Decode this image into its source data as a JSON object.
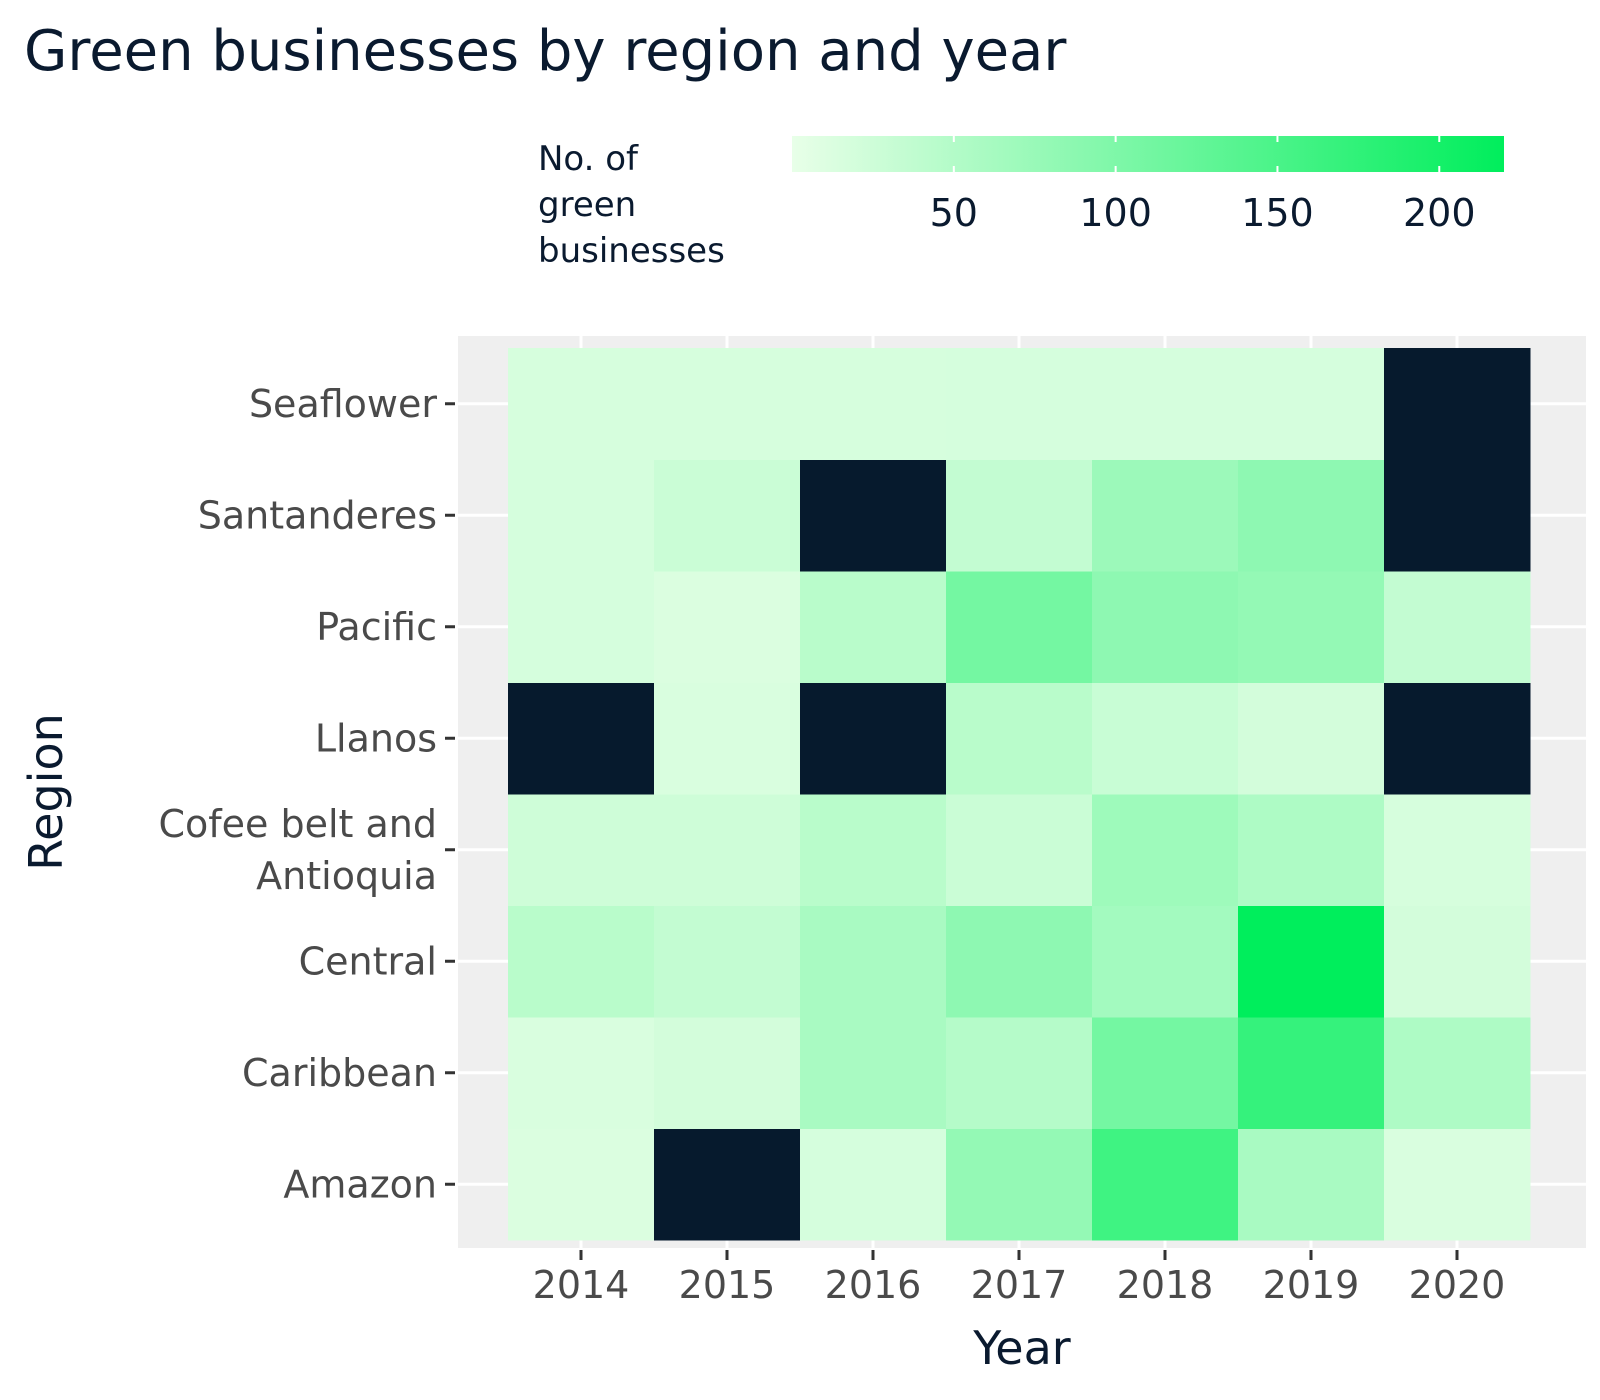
{
  "chart_data": {
    "type": "heatmap",
    "title": "Green businesses by region and year",
    "xlabel": "Year",
    "ylabel": "Region",
    "x": [
      "2014",
      "2015",
      "2016",
      "2017",
      "2018",
      "2019",
      "2020"
    ],
    "y": [
      "Amazon",
      "Caribbean",
      "Central",
      "Cofee belt and\nAntioquia",
      "Llanos",
      "Pacific",
      "Santanderes",
      "Seaflower"
    ],
    "values": [
      [
        12,
        null,
        18,
        80,
        160,
        60,
        14
      ],
      [
        14,
        20,
        60,
        48,
        110,
        170,
        55
      ],
      [
        45,
        35,
        60,
        85,
        65,
        220,
        20
      ],
      [
        25,
        25,
        45,
        28,
        70,
        55,
        17
      ],
      [
        null,
        14,
        null,
        45,
        30,
        20,
        null
      ],
      [
        18,
        12,
        45,
        110,
        85,
        80,
        35
      ],
      [
        18,
        28,
        null,
        35,
        72,
        85,
        null
      ],
      [
        17,
        17,
        17,
        18,
        18,
        18,
        null
      ]
    ],
    "missing_color": "#061a2d",
    "color_scale": {
      "low": "#e8ffe8",
      "high": "#00ee5c",
      "min": 0,
      "max": 220
    },
    "legend": {
      "title": "No. of\ngreen\nbusinesses",
      "ticks": [
        50,
        100,
        150,
        200
      ],
      "position": "top"
    },
    "grid": true,
    "panel_background": "#efefef"
  }
}
